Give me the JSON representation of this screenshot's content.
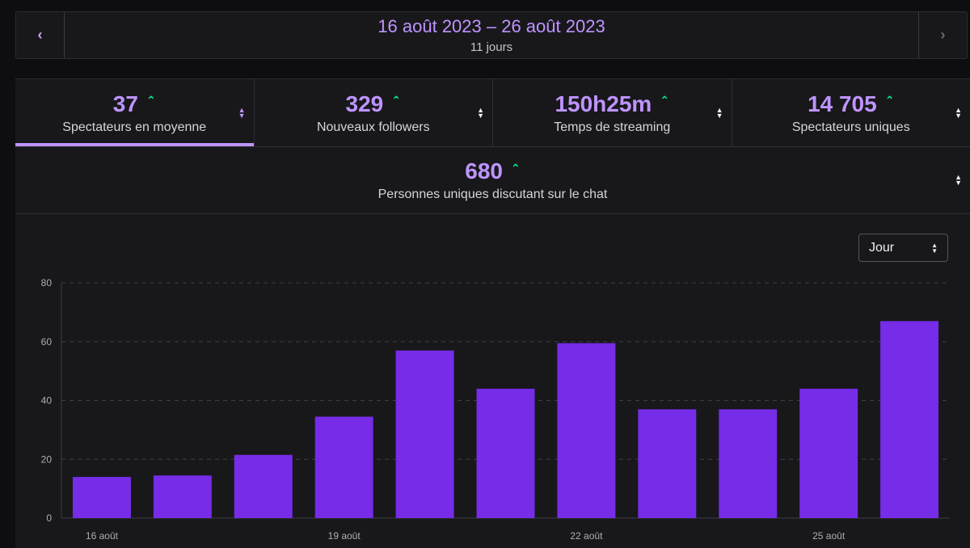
{
  "date_nav": {
    "range": "16 août 2023 – 26 août 2023",
    "duration": "11 jours",
    "prev_icon": "chevron-left-icon",
    "next_icon": "chevron-right-icon"
  },
  "kpis": [
    {
      "value": "37",
      "label": "Spectateurs en moyenne",
      "active": true
    },
    {
      "value": "329",
      "label": "Nouveaux followers",
      "active": false
    },
    {
      "value": "150h25m",
      "label": "Temps de streaming",
      "active": false
    },
    {
      "value": "14 705",
      "label": "Spectateurs uniques",
      "active": false
    }
  ],
  "kpi_wide": {
    "value": "680",
    "label": "Personnes uniques discutant sur le chat"
  },
  "period_select": {
    "value": "Jour"
  },
  "colors": {
    "accent": "#bf94ff",
    "bar": "#772ce8",
    "trend_up": "#00f593"
  },
  "chart_data": {
    "type": "bar",
    "categories": [
      "16 août",
      "17 août",
      "18 août",
      "19 août",
      "20 août",
      "21 août",
      "22 août",
      "23 août",
      "24 août",
      "25 août",
      "26 août"
    ],
    "values": [
      14,
      14.5,
      21.5,
      34.5,
      57,
      44,
      59.5,
      37,
      37,
      44,
      67
    ],
    "x_tick_labels": [
      "16 août",
      "19 août",
      "22 août",
      "25 août"
    ],
    "y_ticks": [
      0,
      20,
      40,
      60,
      80
    ],
    "ylim": [
      0,
      80
    ],
    "grid": true,
    "title": "",
    "xlabel": "",
    "ylabel": ""
  }
}
